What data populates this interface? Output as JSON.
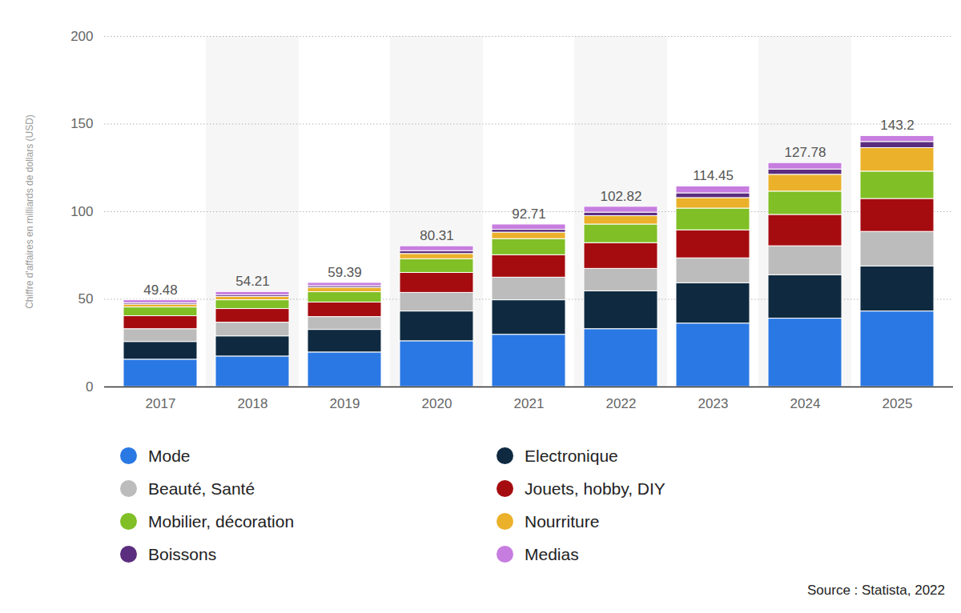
{
  "chart_data": {
    "type": "bar",
    "stacked": true,
    "y_label": "Chiffre d'affaires en milliards de dollars (USD)",
    "source": "Source : Statista, 2022",
    "categories": [
      "2017",
      "2018",
      "2019",
      "2020",
      "2021",
      "2022",
      "2023",
      "2024",
      "2025"
    ],
    "series": [
      {
        "name": "Mode",
        "color": "#2a78e4",
        "values": [
          15.6,
          17.4,
          19.7,
          26.1,
          29.8,
          33.0,
          36.2,
          39.0,
          43.1
        ]
      },
      {
        "name": "Electronique",
        "color": "#0f2a40",
        "values": [
          10.1,
          11.5,
          12.9,
          17.0,
          19.7,
          21.6,
          23.0,
          24.8,
          25.7
        ]
      },
      {
        "name": "Beauté, Santé",
        "color": "#bcbcbc",
        "values": [
          7.3,
          7.8,
          7.3,
          10.6,
          12.9,
          12.8,
          14.2,
          16.5,
          19.7
        ]
      },
      {
        "name": "Jouets, hobby, DIY",
        "color": "#a50c10",
        "values": [
          7.4,
          7.8,
          8.3,
          11.4,
          12.8,
          14.7,
          16.0,
          17.9,
          18.8
        ]
      },
      {
        "name": "Mobilier, décoration",
        "color": "#80bf26",
        "values": [
          5.0,
          5.0,
          5.9,
          7.8,
          9.2,
          10.6,
          12.4,
          13.3,
          15.6
        ]
      },
      {
        "name": "Nourriture",
        "color": "#ebb12b",
        "values": [
          1.6,
          1.9,
          2.5,
          3.0,
          3.7,
          4.8,
          6.0,
          9.6,
          13.4
        ]
      },
      {
        "name": "Boissons",
        "color": "#5b2d7e",
        "values": [
          0.8,
          0.9,
          1.0,
          1.6,
          1.6,
          2.0,
          2.7,
          3.0,
          3.5
        ]
      },
      {
        "name": "Medias",
        "color": "#c77ddf",
        "values": [
          1.68,
          1.91,
          1.79,
          2.81,
          3.01,
          3.32,
          3.95,
          3.68,
          3.4
        ]
      }
    ],
    "totals": [
      49.48,
      54.21,
      59.39,
      80.31,
      92.71,
      102.82,
      114.45,
      127.78,
      143.2
    ],
    "ylim": [
      0,
      200
    ],
    "yticks": [
      0,
      50,
      100,
      150,
      200
    ],
    "grid": true,
    "legend": "bottom"
  }
}
